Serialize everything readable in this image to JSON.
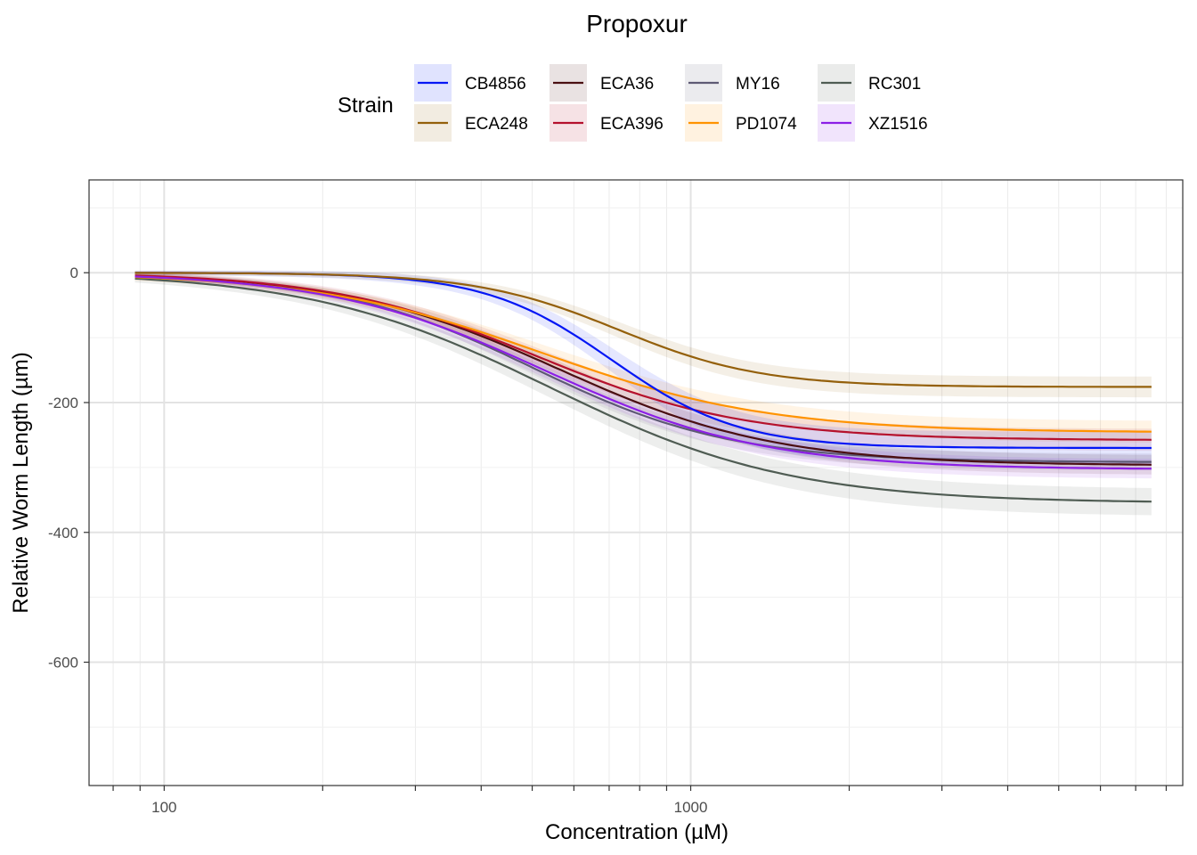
{
  "chart_data": {
    "type": "line",
    "title": "Propoxur",
    "xlabel": "Concentration (µM)",
    "ylabel": "Relative Worm Length (µm)",
    "x_scale": "log10",
    "xlim": [
      72,
      8600
    ],
    "ylim": [
      -790,
      143
    ],
    "x_ticks": [
      {
        "value": 100,
        "label": "100"
      },
      {
        "value": 1000,
        "label": "1000"
      }
    ],
    "y_ticks": [
      {
        "value": 0,
        "label": "0"
      },
      {
        "value": -200,
        "label": "-200"
      },
      {
        "value": -400,
        "label": "-400"
      },
      {
        "value": -600,
        "label": "-600"
      }
    ],
    "x_range": [
      88,
      7500
    ],
    "grid": true,
    "legend": {
      "title": "Strain",
      "position": "top",
      "entries": [
        "CB4856",
        "ECA248",
        "ECA36",
        "ECA396",
        "MY16",
        "PD1074",
        "RC301",
        "XZ1516"
      ]
    },
    "series": [
      {
        "name": "MY16",
        "color": "#5e5a74",
        "top": 0,
        "bottom": -292,
        "ec50": 500,
        "hill": 2.3,
        "band": 10
      },
      {
        "name": "RC301",
        "color": "#4f5c53",
        "top": 2,
        "bottom": -355,
        "ec50": 540,
        "hill": 1.9,
        "band": 18
      },
      {
        "name": "ECA36",
        "color": "#4a0f12",
        "top": 1,
        "bottom": -297,
        "ec50": 560,
        "hill": 2.1,
        "band": 12
      },
      {
        "name": "ECA396",
        "color": "#b5112d",
        "top": 1,
        "bottom": -258,
        "ec50": 510,
        "hill": 2.2,
        "band": 14
      },
      {
        "name": "PD1074",
        "color": "#ff9300",
        "top": 0,
        "bottom": -246,
        "ec50": 520,
        "hill": 2.0,
        "band": 14
      },
      {
        "name": "XZ1516",
        "color": "#8c1fe6",
        "top": 1,
        "bottom": -303,
        "ec50": 530,
        "hill": 2.1,
        "band": 12
      },
      {
        "name": "CB4856",
        "color": "#0316f5",
        "top": 0,
        "bottom": -270,
        "ec50": 710,
        "hill": 3.6,
        "band": 22
      },
      {
        "name": "ECA248",
        "color": "#94600b",
        "top": 0,
        "bottom": -176,
        "ec50": 730,
        "hill": 3.2,
        "band": 13
      }
    ]
  }
}
